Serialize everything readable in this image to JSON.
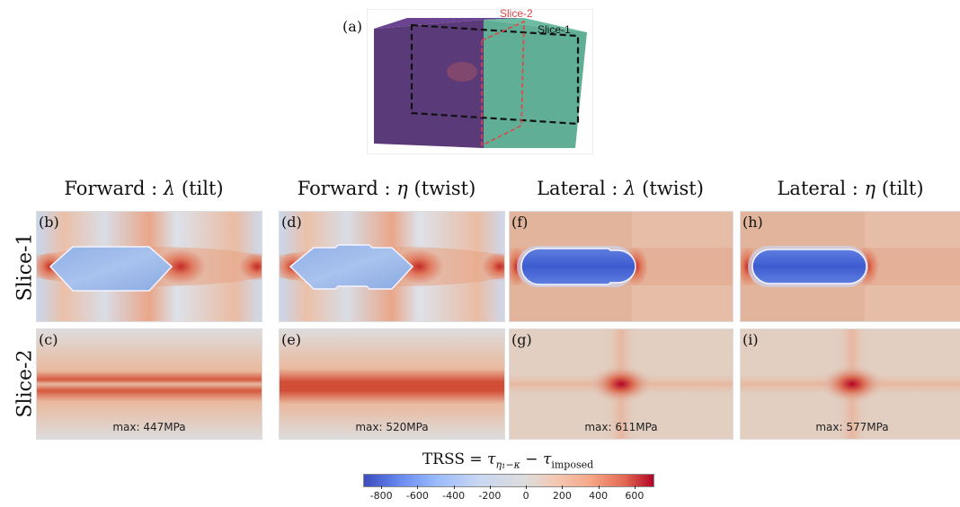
{
  "top_figure": {
    "panel_label": "(a)",
    "slice2_label": "Slice-2",
    "slice1_label": "Slice-1",
    "colors": {
      "left_block": "#5b3a7a",
      "right_block": "#5fae95",
      "slice1": "#111111",
      "slice2": "#e0454a"
    }
  },
  "columns": [
    {
      "mode": "Forward",
      "sym": "λ",
      "kind": "(tilt)"
    },
    {
      "mode": "Forward",
      "sym": "η",
      "kind": "(twist)"
    },
    {
      "mode": "Lateral",
      "sym": "λ",
      "kind": "(twist)"
    },
    {
      "mode": "Lateral",
      "sym": "η",
      "kind": "(tilt)"
    }
  ],
  "rows": [
    "Slice-1",
    "Slice-2"
  ],
  "panels": {
    "slice1": [
      "(b)",
      "(d)",
      "(f)",
      "(h)"
    ],
    "slice2": [
      "(c)",
      "(e)",
      "(g)",
      "(i)"
    ]
  },
  "max_labels": [
    "max: 447MPa",
    "max: 520MPa",
    "max: 611MPa",
    "max: 577MPa"
  ],
  "colorbar": {
    "title_prefix": "TRSS = ",
    "tau": "τ",
    "sub1": "η₁−κ",
    "minus": " − ",
    "sub2": "imposed",
    "ticks": [
      "-800",
      "-600",
      "-400",
      "-200",
      "0",
      "200",
      "400",
      "600"
    ],
    "tick_values": [
      -800,
      -600,
      -400,
      -200,
      0,
      200,
      400,
      600
    ],
    "range": [
      -900,
      700
    ],
    "colors": {
      "negative": "#3b4cc0",
      "neutral": "#dddcdc",
      "positive": "#b40426"
    }
  }
}
